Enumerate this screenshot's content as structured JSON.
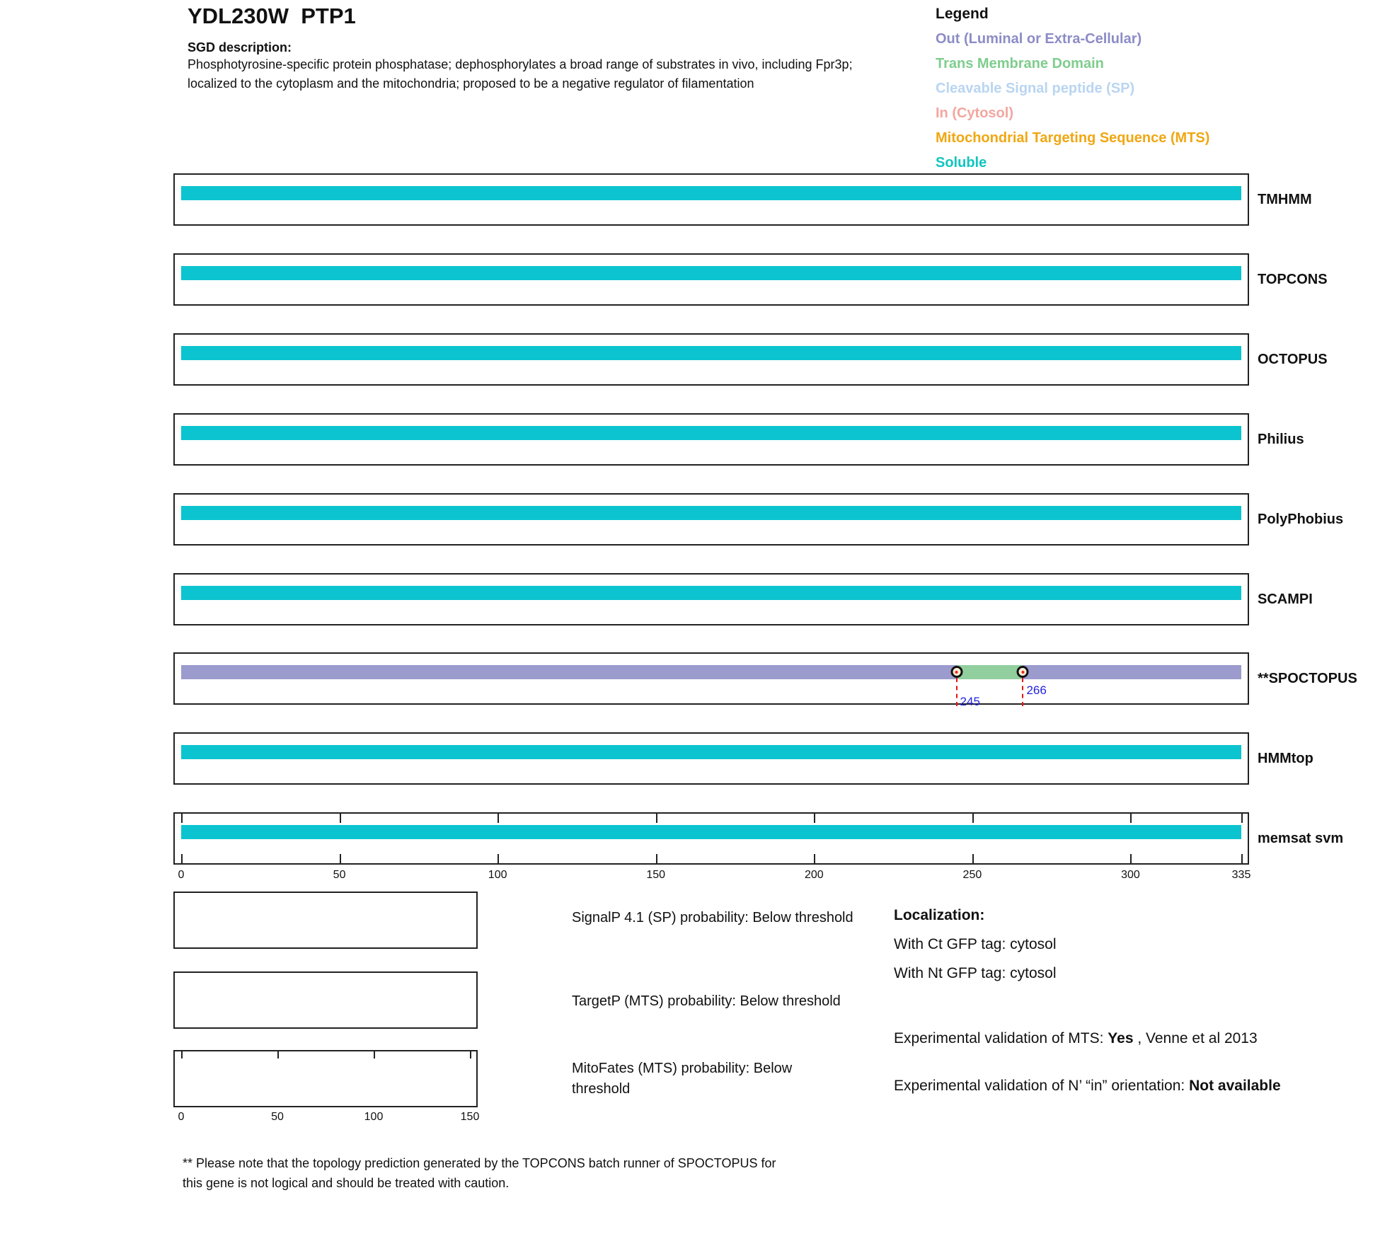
{
  "header": {
    "title": "YDL230W  PTP1",
    "sgd_label": "SGD description:",
    "sgd_text": "Phosphotyrosine-specific protein phosphatase; dephosphorylates a broad range of substrates in vivo, including Fpr3p; localized to the cytoplasm and the mitochondria; proposed to be a negative regulator of filamentation"
  },
  "legend": {
    "title": "Legend",
    "items": [
      {
        "label": "Out (Luminal or Extra-Cellular)",
        "color": "#8c8cc6",
        "key": "out"
      },
      {
        "label": "Trans Membrane Domain",
        "color": "#7fcd8d",
        "key": "tm"
      },
      {
        "label": "Cleavable Signal peptide (SP)",
        "color": "#b9d5f1",
        "key": "sp"
      },
      {
        "label": "In (Cytosol)",
        "color": "#f3a6a0",
        "key": "in"
      },
      {
        "label": "Mitochondrial Targeting Sequence (MTS)",
        "color": "#f0a712",
        "key": "mts"
      },
      {
        "label": "Soluble",
        "color": "#10c5c0",
        "key": "soluble"
      }
    ]
  },
  "colors": {
    "soluble": "#0cc4cf",
    "out": "#9b9bce",
    "tm": "#92cf9e",
    "sp": "#b9d5f1",
    "in": "#f3a6a0",
    "mts": "#f0a712",
    "annotation_blue": "#2222dd",
    "dashed_red": "#e61414",
    "marker_fill": "#f8edd2"
  },
  "chart_data": {
    "type": "bar",
    "orientation": "horizontal",
    "xlim": [
      0,
      335
    ],
    "xticks": [
      0,
      50,
      100,
      150,
      200,
      250,
      300,
      335
    ],
    "grid": false,
    "tracks": [
      {
        "label": "TMHMM",
        "segments": [
          {
            "start": 0,
            "end": 335,
            "class": "soluble"
          }
        ]
      },
      {
        "label": "TOPCONS",
        "segments": [
          {
            "start": 0,
            "end": 335,
            "class": "soluble"
          }
        ]
      },
      {
        "label": "OCTOPUS",
        "segments": [
          {
            "start": 0,
            "end": 335,
            "class": "soluble"
          }
        ]
      },
      {
        "label": "Philius",
        "segments": [
          {
            "start": 0,
            "end": 335,
            "class": "soluble"
          }
        ]
      },
      {
        "label": "PolyPhobius",
        "segments": [
          {
            "start": 0,
            "end": 335,
            "class": "soluble"
          }
        ]
      },
      {
        "label": "SCAMPI",
        "segments": [
          {
            "start": 0,
            "end": 335,
            "class": "soluble"
          }
        ]
      },
      {
        "label": "**SPOCTOPUS",
        "segments": [
          {
            "start": 0,
            "end": 245,
            "class": "out"
          },
          {
            "start": 245,
            "end": 266,
            "class": "tm"
          },
          {
            "start": 266,
            "end": 335,
            "class": "out"
          }
        ],
        "markers": [
          {
            "pos": 245,
            "label": "245",
            "level": "low"
          },
          {
            "pos": 266,
            "label": "266",
            "level": "high"
          }
        ]
      },
      {
        "label": "HMMtop",
        "segments": [
          {
            "start": 0,
            "end": 335,
            "class": "soluble"
          }
        ]
      },
      {
        "label": "memsat svm",
        "segments": [
          {
            "start": 0,
            "end": 335,
            "class": "soluble"
          }
        ],
        "axis_ticks": true
      }
    ],
    "mini_plots": [
      {
        "label": "SignalP 4.1 (SP) probability: Below threshold",
        "value": "Below threshold"
      },
      {
        "label": "TargetP (MTS) probability: Below threshold",
        "value": "Below threshold"
      },
      {
        "label": "MitoFates (MTS) probability: Below threshold",
        "value": "Below threshold",
        "xlim": [
          0,
          150
        ],
        "xticks": [
          0,
          50,
          100,
          150
        ]
      }
    ]
  },
  "localization": {
    "title": "Localization:",
    "lines": [
      "With Ct GFP tag: cytosol",
      "With Nt GFP tag: cytosol"
    ],
    "mts_prefix": "Experimental validation of MTS: ",
    "mts_value": "Yes",
    "mts_suffix": " , Venne et al 2013",
    "orient_prefix": "Experimental validation of N’ “in” orientation: ",
    "orient_value": "Not available"
  },
  "footnote": "** Please note that the topology prediction generated by the TOPCONS batch runner of SPOCTOPUS for this gene is not logical and should be treated with caution."
}
